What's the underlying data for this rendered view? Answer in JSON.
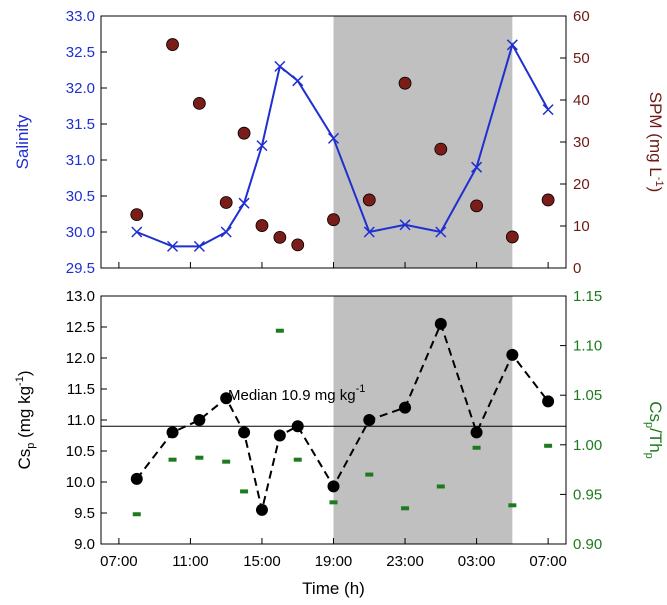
{
  "chart_data": [
    {
      "type": "line",
      "panel": "top",
      "xlabel": "",
      "ylabel": "Salinity",
      "ylabel_color": "#1f2fd0",
      "y2label_main": "SPM (mg L",
      "y2label_sup": "-1",
      "y2label_tail": ")",
      "y2label_color": "#6b1a14",
      "ylim": [
        29.5,
        33.0
      ],
      "y2lim": [
        0,
        60
      ],
      "yticks": [
        "29.5",
        "30.0",
        "30.5",
        "31.0",
        "31.5",
        "32.0",
        "32.5",
        "33.0"
      ],
      "y2ticks": [
        "0",
        "10",
        "20",
        "30",
        "40",
        "50",
        "60"
      ],
      "xlim": [
        6,
        32
      ],
      "shade": [
        19,
        29
      ],
      "shade_color": "#c0c0c0",
      "series": [
        {
          "name": "",
          "axis": "left",
          "style": "line-x",
          "color": "#1f2fd0",
          "x": [
            8,
            10,
            11.5,
            13,
            14,
            15,
            16,
            17,
            19,
            21,
            23,
            25,
            27,
            29,
            31
          ],
          "y": [
            30.0,
            29.8,
            29.8,
            30.0,
            30.4,
            31.2,
            32.3,
            32.1,
            31.3,
            30.0,
            30.1,
            30.0,
            30.9,
            32.6,
            31.7
          ]
        },
        {
          "name": "",
          "axis": "right",
          "style": "circle",
          "color": "#7a1c18",
          "x": [
            8,
            10,
            11.5,
            13,
            14,
            15,
            16,
            17,
            19,
            21,
            23,
            25,
            27,
            29,
            31
          ],
          "y": [
            12.7,
            53.2,
            39.2,
            15.6,
            32.1,
            10.1,
            7.3,
            5.5,
            11.5,
            16.2,
            44.0,
            28.3,
            14.8,
            7.4,
            16.2
          ]
        }
      ]
    },
    {
      "type": "line",
      "panel": "bottom",
      "xlabel": "Time (h)",
      "ylabel_main": "Cs",
      "ylabel_sub": "p",
      "ylabel_tail": " (mg kg",
      "ylabel_sup": "-1",
      "ylabel_end": ")",
      "y2label_main": "Cs",
      "y2label_sub1": "p",
      "y2label_mid": "/Th",
      "y2label_sub2": "p",
      "y2label_color": "#1f7a1f",
      "ylim": [
        9.0,
        13.0
      ],
      "y2lim": [
        0.9,
        1.15
      ],
      "yticks": [
        "9.0",
        "9.5",
        "10.0",
        "10.5",
        "11.0",
        "11.5",
        "12.0",
        "12.5",
        "13.0"
      ],
      "y2ticks": [
        "0.90",
        "0.95",
        "1.00",
        "1.05",
        "1.10",
        "1.15"
      ],
      "xticks": [
        "07:00",
        "11:00",
        "15:00",
        "19:00",
        "23:00",
        "03:00",
        "07:00"
      ],
      "xtick_values": [
        7,
        11,
        15,
        19,
        23,
        27,
        31
      ],
      "xlim": [
        6,
        32
      ],
      "shade": [
        19,
        29
      ],
      "shade_color": "#c0c0c0",
      "median_label_main": "Median 10.9 mg kg",
      "median_label_sup": "-1",
      "median_value": 10.9,
      "series": [
        {
          "name": "",
          "axis": "left",
          "style": "dashed-circle",
          "color": "#000000",
          "x": [
            8,
            10,
            11.5,
            13,
            14,
            15,
            16,
            17,
            19,
            21,
            23,
            25,
            27,
            29,
            31
          ],
          "y": [
            10.05,
            10.8,
            11.0,
            11.35,
            10.8,
            9.55,
            10.75,
            10.9,
            9.93,
            11.0,
            11.2,
            12.55,
            10.8,
            12.05,
            11.3
          ]
        },
        {
          "name": "",
          "axis": "right",
          "style": "dash-marker",
          "color": "#1f7a1f",
          "x": [
            8,
            10,
            11.5,
            13,
            14,
            16,
            17,
            19,
            21,
            23,
            25,
            27,
            29,
            31
          ],
          "y": [
            0.93,
            0.985,
            0.987,
            0.983,
            0.953,
            1.115,
            0.985,
            0.942,
            0.97,
            0.936,
            0.958,
            0.997,
            0.939,
            0.999
          ]
        }
      ]
    }
  ]
}
